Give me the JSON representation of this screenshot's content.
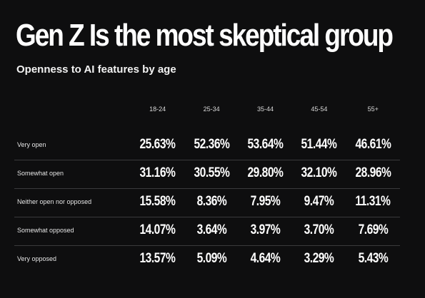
{
  "title": "Gen Z Is the most skeptical group",
  "subtitle": "Openness to AI features by age",
  "table": {
    "columns": [
      "18-24",
      "25-34",
      "35-44",
      "45-54",
      "55+"
    ],
    "rows": [
      {
        "label": "Very open",
        "values": [
          "25.63%",
          "52.36%",
          "53.64%",
          "51.44%",
          "46.61%"
        ]
      },
      {
        "label": "Somewhat open",
        "values": [
          "31.16%",
          "30.55%",
          "29.80%",
          "32.10%",
          "28.96%"
        ]
      },
      {
        "label": "Neither open nor opposed",
        "values": [
          "15.58%",
          "8.36%",
          "7.95%",
          "9.47%",
          "11.31%"
        ]
      },
      {
        "label": "Somewhat opposed",
        "values": [
          "14.07%",
          "3.64%",
          "3.97%",
          "3.70%",
          "7.69%"
        ]
      },
      {
        "label": "Very opposed",
        "values": [
          "13.57%",
          "5.09%",
          "4.64%",
          "3.29%",
          "5.43%"
        ]
      }
    ]
  }
}
